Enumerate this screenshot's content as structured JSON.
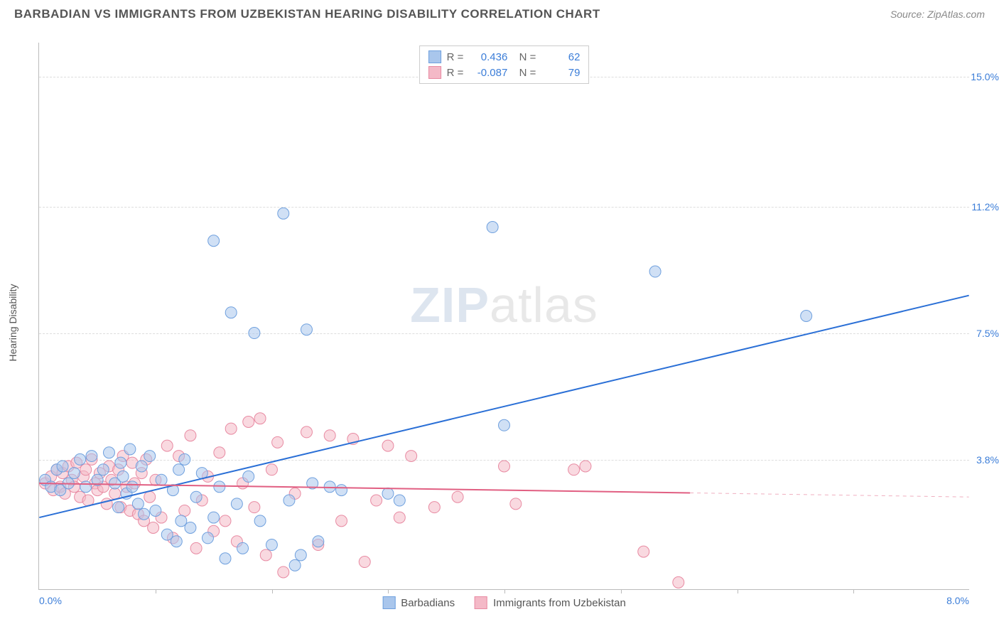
{
  "title": "BARBADIAN VS IMMIGRANTS FROM UZBEKISTAN HEARING DISABILITY CORRELATION CHART",
  "source": "Source: ZipAtlas.com",
  "y_axis_title": "Hearing Disability",
  "watermark_a": "ZIP",
  "watermark_b": "atlas",
  "chart": {
    "type": "scatter",
    "x_min": 0.0,
    "x_max": 8.0,
    "y_min": 0.0,
    "y_max": 16.0,
    "x_tick_positions": [
      1,
      2,
      3,
      4,
      5,
      6,
      7
    ],
    "y_ticks": [
      {
        "v": 3.8,
        "label": "3.8%"
      },
      {
        "v": 7.5,
        "label": "7.5%"
      },
      {
        "v": 11.2,
        "label": "11.2%"
      },
      {
        "v": 15.0,
        "label": "15.0%"
      }
    ],
    "x_label_min": "0.0%",
    "x_label_max": "8.0%",
    "background_color": "#ffffff",
    "grid_color": "#dddddd",
    "marker_radius": 8,
    "marker_opacity": 0.55,
    "line_width": 2,
    "series": [
      {
        "name": "Barbadians",
        "color_fill": "#a9c6ec",
        "color_stroke": "#6fa0de",
        "line_color": "#2a6fd6",
        "R": "0.436",
        "N": "62",
        "regression": {
          "x1": 0.0,
          "y1": 2.1,
          "x2": 8.0,
          "y2": 8.6,
          "solid_until_x": 8.0
        },
        "points": [
          [
            0.05,
            3.2
          ],
          [
            0.1,
            3.0
          ],
          [
            0.15,
            3.5
          ],
          [
            0.18,
            2.9
          ],
          [
            0.2,
            3.6
          ],
          [
            0.25,
            3.1
          ],
          [
            0.3,
            3.4
          ],
          [
            0.35,
            3.8
          ],
          [
            0.4,
            3.0
          ],
          [
            0.45,
            3.9
          ],
          [
            0.5,
            3.2
          ],
          [
            0.55,
            3.5
          ],
          [
            0.6,
            4.0
          ],
          [
            0.65,
            3.1
          ],
          [
            0.68,
            2.4
          ],
          [
            0.7,
            3.7
          ],
          [
            0.72,
            3.3
          ],
          [
            0.75,
            2.8
          ],
          [
            0.78,
            4.1
          ],
          [
            0.8,
            3.0
          ],
          [
            0.85,
            2.5
          ],
          [
            0.88,
            3.6
          ],
          [
            0.9,
            2.2
          ],
          [
            0.95,
            3.9
          ],
          [
            1.0,
            2.3
          ],
          [
            1.05,
            3.2
          ],
          [
            1.1,
            1.6
          ],
          [
            1.15,
            2.9
          ],
          [
            1.18,
            1.4
          ],
          [
            1.2,
            3.5
          ],
          [
            1.22,
            2.0
          ],
          [
            1.25,
            3.8
          ],
          [
            1.3,
            1.8
          ],
          [
            1.35,
            2.7
          ],
          [
            1.4,
            3.4
          ],
          [
            1.45,
            1.5
          ],
          [
            1.5,
            2.1
          ],
          [
            1.5,
            10.2
          ],
          [
            1.55,
            3.0
          ],
          [
            1.6,
            0.9
          ],
          [
            1.65,
            8.1
          ],
          [
            1.7,
            2.5
          ],
          [
            1.75,
            1.2
          ],
          [
            1.8,
            3.3
          ],
          [
            1.85,
            7.5
          ],
          [
            1.9,
            2.0
          ],
          [
            2.0,
            1.3
          ],
          [
            2.1,
            11.0
          ],
          [
            2.15,
            2.6
          ],
          [
            2.2,
            0.7
          ],
          [
            2.25,
            1.0
          ],
          [
            2.3,
            7.6
          ],
          [
            2.35,
            3.1
          ],
          [
            2.4,
            1.4
          ],
          [
            2.5,
            3.0
          ],
          [
            2.6,
            2.9
          ],
          [
            3.0,
            2.8
          ],
          [
            3.1,
            2.6
          ],
          [
            3.9,
            10.6
          ],
          [
            4.0,
            4.8
          ],
          [
            5.3,
            9.3
          ],
          [
            6.6,
            8.0
          ]
        ]
      },
      {
        "name": "Immigrants from Uzbekistan",
        "color_fill": "#f4b9c7",
        "color_stroke": "#e88aa2",
        "line_color": "#e15f82",
        "R": "-0.087",
        "N": "79",
        "regression": {
          "x1": 0.0,
          "y1": 3.1,
          "x2": 8.0,
          "y2": 2.7,
          "solid_until_x": 5.6
        },
        "points": [
          [
            0.05,
            3.1
          ],
          [
            0.1,
            3.3
          ],
          [
            0.12,
            2.9
          ],
          [
            0.15,
            3.5
          ],
          [
            0.18,
            3.0
          ],
          [
            0.2,
            3.4
          ],
          [
            0.22,
            2.8
          ],
          [
            0.25,
            3.6
          ],
          [
            0.28,
            3.2
          ],
          [
            0.3,
            3.0
          ],
          [
            0.32,
            3.7
          ],
          [
            0.35,
            2.7
          ],
          [
            0.38,
            3.3
          ],
          [
            0.4,
            3.5
          ],
          [
            0.42,
            2.6
          ],
          [
            0.45,
            3.8
          ],
          [
            0.48,
            3.1
          ],
          [
            0.5,
            2.9
          ],
          [
            0.52,
            3.4
          ],
          [
            0.55,
            3.0
          ],
          [
            0.58,
            2.5
          ],
          [
            0.6,
            3.6
          ],
          [
            0.62,
            3.2
          ],
          [
            0.65,
            2.8
          ],
          [
            0.68,
            3.5
          ],
          [
            0.7,
            2.4
          ],
          [
            0.72,
            3.9
          ],
          [
            0.75,
            3.0
          ],
          [
            0.78,
            2.3
          ],
          [
            0.8,
            3.7
          ],
          [
            0.82,
            3.1
          ],
          [
            0.85,
            2.2
          ],
          [
            0.88,
            3.4
          ],
          [
            0.9,
            2.0
          ],
          [
            0.92,
            3.8
          ],
          [
            0.95,
            2.7
          ],
          [
            0.98,
            1.8
          ],
          [
            1.0,
            3.2
          ],
          [
            1.05,
            2.1
          ],
          [
            1.1,
            4.2
          ],
          [
            1.15,
            1.5
          ],
          [
            1.2,
            3.9
          ],
          [
            1.25,
            2.3
          ],
          [
            1.3,
            4.5
          ],
          [
            1.35,
            1.2
          ],
          [
            1.4,
            2.6
          ],
          [
            1.45,
            3.3
          ],
          [
            1.5,
            1.7
          ],
          [
            1.55,
            4.0
          ],
          [
            1.6,
            2.0
          ],
          [
            1.65,
            4.7
          ],
          [
            1.7,
            1.4
          ],
          [
            1.75,
            3.1
          ],
          [
            1.8,
            4.9
          ],
          [
            1.85,
            2.4
          ],
          [
            1.9,
            5.0
          ],
          [
            1.95,
            1.0
          ],
          [
            2.0,
            3.5
          ],
          [
            2.05,
            4.3
          ],
          [
            2.1,
            0.5
          ],
          [
            2.2,
            2.8
          ],
          [
            2.3,
            4.6
          ],
          [
            2.4,
            1.3
          ],
          [
            2.5,
            4.5
          ],
          [
            2.6,
            2.0
          ],
          [
            2.7,
            4.4
          ],
          [
            2.8,
            0.8
          ],
          [
            2.9,
            2.6
          ],
          [
            3.0,
            4.2
          ],
          [
            3.1,
            2.1
          ],
          [
            3.2,
            3.9
          ],
          [
            3.4,
            2.4
          ],
          [
            3.6,
            2.7
          ],
          [
            4.0,
            3.6
          ],
          [
            4.1,
            2.5
          ],
          [
            4.6,
            3.5
          ],
          [
            4.7,
            3.6
          ],
          [
            5.2,
            1.1
          ],
          [
            5.5,
            0.2
          ]
        ]
      }
    ]
  },
  "legend_bottom": [
    {
      "label": "Barbadians"
    },
    {
      "label": "Immigrants from Uzbekistan"
    }
  ]
}
